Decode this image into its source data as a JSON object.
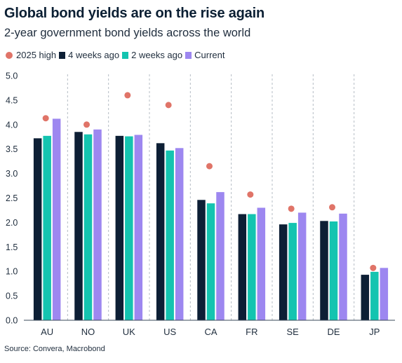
{
  "title": "Global bond yields are on the rise again",
  "subtitle": "2-year government bond yields across the world",
  "source": "Source: Convera, Macrobond",
  "legend": [
    {
      "label": "2025 high",
      "color": "#e07468",
      "shape": "dot"
    },
    {
      "label": "4 weeks ago",
      "color": "#0d1f35",
      "shape": "square"
    },
    {
      "label": "2 weeks ago",
      "color": "#14c4b0",
      "shape": "square"
    },
    {
      "label": "Current",
      "color": "#9d87f0",
      "shape": "square"
    }
  ],
  "chart_data": {
    "type": "bar",
    "categories": [
      "AU",
      "NO",
      "UK",
      "US",
      "CA",
      "FR",
      "SE",
      "DE",
      "JP"
    ],
    "series": [
      {
        "name": "4 weeks ago",
        "color": "#0d1f35",
        "values": [
          3.72,
          3.85,
          3.77,
          3.62,
          2.46,
          2.17,
          1.96,
          2.03,
          0.93
        ]
      },
      {
        "name": "2 weeks ago",
        "color": "#14c4b0",
        "values": [
          3.77,
          3.8,
          3.76,
          3.47,
          2.39,
          2.17,
          1.99,
          2.02,
          0.99
        ]
      },
      {
        "name": "Current",
        "color": "#9d87f0",
        "values": [
          4.12,
          3.9,
          3.79,
          3.52,
          2.62,
          2.3,
          2.2,
          2.18,
          1.07
        ]
      }
    ],
    "markers": {
      "name": "2025 high",
      "color": "#e07468",
      "values": [
        4.13,
        4.0,
        4.6,
        4.4,
        3.15,
        2.57,
        2.28,
        2.31,
        1.07
      ]
    },
    "yticks": [
      "0.0",
      "0.5",
      "1.0",
      "1.5",
      "2.0",
      "2.5",
      "3.0",
      "3.5",
      "4.0",
      "4.5",
      "5.0"
    ],
    "ylim": [
      0,
      5
    ],
    "grid": "vertical dashed separators",
    "legend_position": "top-left"
  }
}
